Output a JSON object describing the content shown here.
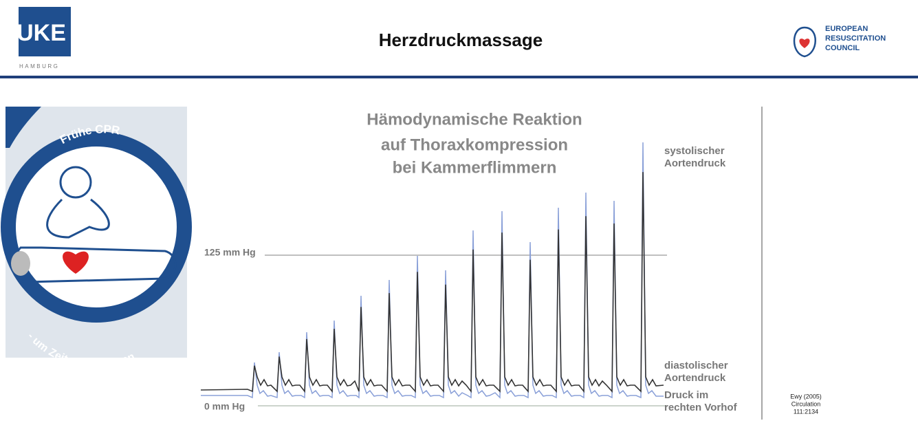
{
  "header": {
    "title": "Herzdruckmassage",
    "left_logo": {
      "mark": "UKE",
      "sub": "HAMBURG"
    },
    "right_logo": {
      "lines": [
        "EUROPEAN",
        "RESUSCITATION",
        "COUNCIL"
      ]
    }
  },
  "illustration": {
    "top_text": "Frühe CPR",
    "bottom_text": "- um Zeit zu gewinnen"
  },
  "figure": {
    "title_lines": [
      "Hämodynamische Reaktion",
      "auf Thoraxkompression",
      "bei Kammerflimmern"
    ],
    "reference_lines": {
      "upper": "125 mm Hg",
      "lower": "0 mm Hg"
    },
    "curve_labels": {
      "systolic": [
        "systolischer",
        "Aortendruck"
      ],
      "diastolic": [
        "diastolischer",
        "Aortendruck"
      ],
      "atrial": [
        "Druck im",
        "rechten Vorhof"
      ]
    },
    "citation": [
      "Ewy  (2005)",
      "Circulation",
      "111:2134"
    ]
  }
}
